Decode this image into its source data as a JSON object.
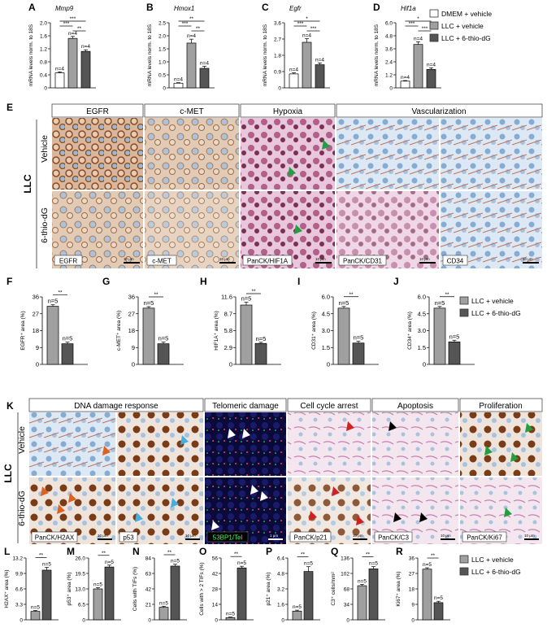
{
  "colors": {
    "vehicle_dmem": "#ffffff",
    "llc_vehicle": "#a0a0a0",
    "llc_thio": "#555555",
    "ihc_brown": "#b0632a",
    "hematoxylin": "#8fb3d9",
    "pink": "#d99ac9",
    "fluor_bg": "#0a0a3a",
    "arrow_orange": "#e06020",
    "arrow_cyan": "#40b0e0",
    "arrow_green": "#20a040",
    "arrow_red": "#d02020"
  },
  "legend_top": [
    "DMEM + vehicle",
    "LLC + vehicle",
    "LLC + 6-thio-dG"
  ],
  "legend_mid": [
    "LLC + vehicle",
    "LLC + 6-thio-dG"
  ],
  "legend_bottom": [
    "LLC + vehicle",
    "LLC + 6-thio-dG"
  ],
  "panel_e": {
    "letter": "E",
    "group": "LLC",
    "rows": [
      "Vehicle",
      "6-thio-dG"
    ],
    "headers": [
      "EGFR",
      "c-MET",
      "Hypoxia",
      "Vascularization"
    ],
    "stain_labels": [
      "EGFR",
      "c-MET",
      "PanCK/HIF1A",
      "PanCK/CD31",
      "CD34"
    ],
    "scale_labels": [
      "10 μm",
      "10 μm",
      "10 μm",
      "10 μm",
      "10 μm"
    ]
  },
  "panel_k": {
    "letter": "K",
    "group": "LLC",
    "rows": [
      "Vehicle",
      "6-thio-dG"
    ],
    "headers": [
      "DNA damage response",
      "Telomeric damage",
      "Cell cycle arrest",
      "Apoptosis",
      "Proliferation"
    ],
    "stain_labels": [
      "PanCK/H2AX",
      "p53",
      "53BP1/Tel",
      "PanCK/p21",
      "PanCK/C3",
      "PanCK/Ki67"
    ],
    "scale_labels": [
      "10 μm",
      "10 μm",
      "1 μm",
      "10 μm",
      "10 μm",
      "10 μm"
    ]
  },
  "chart_data": [
    {
      "panel": "A",
      "type": "bar",
      "title": "Mmp9",
      "ylabel": "mRNA levels norm. to 18S",
      "ylim": [
        0,
        2
      ],
      "yticks": [
        "0",
        "0.4",
        "0.8",
        "1.2",
        "1.6",
        "2.0"
      ],
      "values": [
        0.46,
        1.52,
        1.12
      ],
      "errors": [
        0.03,
        0.06,
        0.05
      ],
      "n_labels": [
        "n=4",
        "n=4",
        "n=4"
      ],
      "sig": [
        {
          "a": 0,
          "b": 1,
          "label": "***"
        },
        {
          "a": 0,
          "b": 2,
          "label": "***"
        },
        {
          "a": 1,
          "b": 2,
          "label": "**"
        }
      ]
    },
    {
      "panel": "B",
      "type": "bar",
      "title": "Hmox1",
      "ylabel": "mRNA levels norm. to 18S",
      "ylim": [
        0,
        2.5
      ],
      "yticks": [
        "0",
        "0.5",
        "1.0",
        "1.5",
        "2.0",
        "2.5"
      ],
      "values": [
        0.18,
        1.72,
        0.75
      ],
      "errors": [
        0.02,
        0.15,
        0.08
      ],
      "n_labels": [
        "n=4",
        "n=4",
        "n=4"
      ],
      "sig": [
        {
          "a": 0,
          "b": 1,
          "label": "***"
        },
        {
          "a": 0,
          "b": 2,
          "label": "**"
        },
        {
          "a": 1,
          "b": 2,
          "label": "**"
        }
      ]
    },
    {
      "panel": "C",
      "type": "bar",
      "title": "Egfr",
      "ylabel": "mRNA levels norm. to 18S",
      "ylim": [
        0,
        3.6
      ],
      "yticks": [
        "0",
        "0.9",
        "1.8",
        "2.7",
        "3.6"
      ],
      "values": [
        0.77,
        2.52,
        1.28
      ],
      "errors": [
        0.06,
        0.2,
        0.1
      ],
      "n_labels": [
        "n=4",
        "n=4",
        "n=4"
      ],
      "sig": [
        {
          "a": 0,
          "b": 1,
          "label": "***"
        },
        {
          "a": 0,
          "b": 2,
          "label": "*"
        },
        {
          "a": 1,
          "b": 2,
          "label": "***"
        }
      ]
    },
    {
      "panel": "D",
      "type": "bar",
      "title": "Hif1a",
      "ylabel": "mRNA levels norm. to 18S",
      "ylim": [
        0,
        6
      ],
      "yticks": [
        "0",
        "1.2",
        "2.4",
        "3.6",
        "4.8",
        "6.0"
      ],
      "values": [
        0.62,
        4.0,
        1.7
      ],
      "errors": [
        0.05,
        0.25,
        0.15
      ],
      "n_labels": [
        "n=4",
        "n=4",
        "n=4"
      ],
      "sig": [
        {
          "a": 0,
          "b": 1,
          "label": "***"
        },
        {
          "a": 0,
          "b": 2,
          "label": "*"
        },
        {
          "a": 1,
          "b": 2,
          "label": "***"
        }
      ]
    },
    {
      "panel": "F",
      "type": "bar",
      "ylabel": "EGFR⁺ area (%)",
      "ylim": [
        0,
        36
      ],
      "yticks": [
        "0",
        "9",
        "18",
        "27",
        "36"
      ],
      "values": [
        31,
        11
      ],
      "errors": [
        0.8,
        0.9
      ],
      "n_labels": [
        "n=5",
        "n=5"
      ],
      "sig": [
        {
          "a": 0,
          "b": 1,
          "label": "**"
        }
      ]
    },
    {
      "panel": "G",
      "type": "bar",
      "ylabel": "c-MET⁺ area (%)",
      "ylim": [
        0,
        36
      ],
      "yticks": [
        "0",
        "9",
        "18",
        "27",
        "36"
      ],
      "values": [
        30,
        11
      ],
      "errors": [
        0.8,
        0.9
      ],
      "n_labels": [
        "n=5",
        "n=5"
      ],
      "sig": [
        {
          "a": 0,
          "b": 1,
          "label": "**"
        }
      ]
    },
    {
      "panel": "H",
      "type": "bar",
      "ylabel": "HIF1A⁺ area (%)",
      "ylim": [
        0,
        11.6
      ],
      "yticks": [
        "0",
        "2.9",
        "5.8",
        "8.7",
        "11.6"
      ],
      "values": [
        10.2,
        3.6
      ],
      "errors": [
        0.5,
        0.2
      ],
      "n_labels": [
        "n=5",
        "n=5"
      ],
      "sig": [
        {
          "a": 0,
          "b": 1,
          "label": "**"
        }
      ]
    },
    {
      "panel": "I",
      "type": "bar",
      "ylabel": "CD31⁺ area (%)",
      "ylim": [
        0,
        6
      ],
      "yticks": [
        "0",
        "1.5",
        "3.0",
        "4.5",
        "6.0"
      ],
      "values": [
        5.0,
        1.9
      ],
      "errors": [
        0.15,
        0.15
      ],
      "n_labels": [
        "n=5",
        "n=5"
      ],
      "sig": [
        {
          "a": 0,
          "b": 1,
          "label": "**"
        }
      ]
    },
    {
      "panel": "J",
      "type": "bar",
      "ylabel": "CD34⁺ area (%)",
      "ylim": [
        0,
        6
      ],
      "yticks": [
        "0",
        "1.5",
        "3.0",
        "4.5",
        "6.0"
      ],
      "values": [
        5.0,
        2.0
      ],
      "errors": [
        0.15,
        0.15
      ],
      "n_labels": [
        "n=5",
        "n=5"
      ],
      "sig": [
        {
          "a": 0,
          "b": 1,
          "label": "**"
        }
      ]
    },
    {
      "panel": "L",
      "type": "bar",
      "ylabel": "H2AX⁺ area (%)",
      "ylim": [
        0,
        13.2
      ],
      "yticks": [
        "0",
        "3.3",
        "6.6",
        "9.9",
        "13.2"
      ],
      "values": [
        1.8,
        10.6
      ],
      "errors": [
        0.2,
        0.6
      ],
      "n_labels": [
        "n=5",
        "n=5"
      ],
      "sig": [
        {
          "a": 0,
          "b": 1,
          "label": "**"
        }
      ]
    },
    {
      "panel": "M",
      "type": "bar",
      "ylabel": "p53⁺ area (%)",
      "ylim": [
        0,
        26
      ],
      "yticks": [
        "0",
        "6.5",
        "13.0",
        "19.5",
        "26.0"
      ],
      "values": [
        13.0,
        22.2
      ],
      "errors": [
        0.5,
        0.8
      ],
      "n_labels": [
        "n=5",
        "n=5"
      ],
      "sig": [
        {
          "a": 0,
          "b": 1,
          "label": "**"
        }
      ]
    },
    {
      "panel": "N",
      "type": "bar",
      "ylabel": "Cells with TIFs (%)",
      "ylim": [
        0,
        84
      ],
      "yticks": [
        "0",
        "21",
        "42",
        "63",
        "84"
      ],
      "values": [
        17,
        73
      ],
      "errors": [
        1.5,
        2.5
      ],
      "n_labels": [
        "n=5",
        "n=5"
      ],
      "sig": [
        {
          "a": 0,
          "b": 1,
          "label": "**"
        }
      ]
    },
    {
      "panel": "O",
      "type": "bar",
      "ylabel": "Cells with > 2 TIFs (%)",
      "ylim": [
        0,
        56
      ],
      "yticks": [
        "0",
        "14",
        "28",
        "42",
        "56"
      ],
      "values": [
        2,
        47
      ],
      "errors": [
        0.5,
        1.5
      ],
      "n_labels": [
        "n=5",
        "n=5"
      ],
      "sig": [
        {
          "a": 0,
          "b": 1,
          "label": "**"
        }
      ]
    },
    {
      "panel": "P",
      "type": "bar",
      "ylabel": "p21⁺ area (%)",
      "ylim": [
        0,
        6.4
      ],
      "yticks": [
        "0",
        "1.6",
        "3.2",
        "4.8",
        "6.4"
      ],
      "values": [
        0.9,
        5.0
      ],
      "errors": [
        0.1,
        0.5
      ],
      "n_labels": [
        "n=5",
        "n=5"
      ],
      "sig": [
        {
          "a": 0,
          "b": 1,
          "label": "**"
        }
      ]
    },
    {
      "panel": "Q",
      "type": "bar",
      "ylabel": "C3⁺ cells/mm²",
      "ylim": [
        0,
        136
      ],
      "yticks": [
        "0",
        "34",
        "68",
        "102",
        "136"
      ],
      "values": [
        75,
        112
      ],
      "errors": [
        3,
        5
      ],
      "n_labels": [
        "n=5",
        "n=5"
      ],
      "sig": [
        {
          "a": 0,
          "b": 1,
          "label": "**"
        }
      ]
    },
    {
      "panel": "R",
      "type": "bar",
      "ylabel": "Ki67⁺ area (%)",
      "ylim": [
        0,
        36
      ],
      "yticks": [
        "0",
        "9",
        "18",
        "27",
        "36"
      ],
      "values": [
        29.5,
        10
      ],
      "errors": [
        0.8,
        0.8
      ],
      "n_labels": [
        "n=5",
        "n=5"
      ],
      "sig": [
        {
          "a": 0,
          "b": 1,
          "label": "**"
        }
      ]
    }
  ]
}
